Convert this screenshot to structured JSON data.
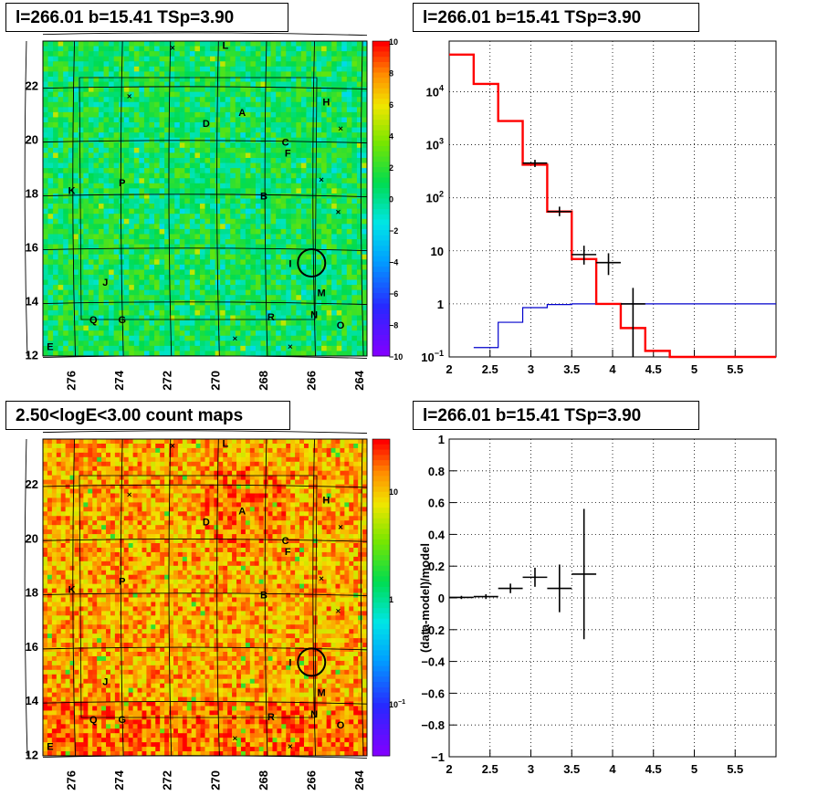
{
  "panels": {
    "tl_title": "l=266.01 b=15.41 TSp=3.90",
    "tr_title": "l=266.01 b=15.41 TSp=3.90",
    "bl_title": "2.50<logE<3.00 count maps",
    "br_title": "l=266.01 b=15.41 TSp=3.90"
  },
  "colors": {
    "data": "#000000",
    "model": "#ff0000",
    "ratio": "#0000cc"
  },
  "chart_data": [
    {
      "type": "heatmap",
      "title": "l=266.01 b=15.41 TSp=3.90",
      "x_ticks": [
        "276",
        "274",
        "272",
        "270",
        "268",
        "266",
        "264"
      ],
      "y_ticks": [
        "12",
        "14",
        "16",
        "18",
        "20",
        "22"
      ],
      "colorbar_ticks": [
        "10",
        "8",
        "6",
        "4",
        "2",
        "0",
        "−2",
        "−4",
        "−6",
        "−8",
        "−10"
      ],
      "colorbar_range": [
        -10,
        10
      ],
      "sources": [
        {
          "label": "L",
          "l": 269.6,
          "b": 23.5
        },
        {
          "label": "H",
          "l": 265.4,
          "b": 21.4
        },
        {
          "label": "A",
          "l": 268.9,
          "b": 21.0
        },
        {
          "label": "D",
          "l": 270.4,
          "b": 20.6
        },
        {
          "label": "C",
          "l": 267.1,
          "b": 19.9
        },
        {
          "label": "F",
          "l": 267.0,
          "b": 19.5
        },
        {
          "label": "K",
          "l": 276.0,
          "b": 18.1
        },
        {
          "label": "P",
          "l": 273.9,
          "b": 18.4
        },
        {
          "label": "B",
          "l": 268.0,
          "b": 17.9
        },
        {
          "label": "I",
          "l": 266.9,
          "b": 15.4
        },
        {
          "label": "J",
          "l": 274.6,
          "b": 14.7
        },
        {
          "label": "M",
          "l": 265.6,
          "b": 14.3
        },
        {
          "label": "Q",
          "l": 275.1,
          "b": 13.3
        },
        {
          "label": "G",
          "l": 273.9,
          "b": 13.3
        },
        {
          "label": "R",
          "l": 267.7,
          "b": 13.4
        },
        {
          "label": "N",
          "l": 265.9,
          "b": 13.5
        },
        {
          "label": "O",
          "l": 264.8,
          "b": 13.1
        },
        {
          "label": "E",
          "l": 276.9,
          "b": 12.3
        }
      ],
      "marked_position": {
        "l": 266.01,
        "b": 15.41
      }
    },
    {
      "type": "line",
      "title": "l=266.01 b=15.41 TSp=3.90",
      "y_scale": "log",
      "xlim": [
        2.0,
        6.0
      ],
      "ylim": [
        0.1,
        90000
      ],
      "x_ticks": [
        "2",
        "2.5",
        "3",
        "3.5",
        "4",
        "4.5",
        "5",
        "5.5"
      ],
      "y_ticks": [
        "10^1",
        "1",
        "10",
        "10^2",
        "10^3",
        "10^4"
      ],
      "series": [
        {
          "role": "model",
          "edges": [
            2.0,
            2.3,
            2.6,
            2.9,
            3.2,
            3.5,
            3.8,
            4.1,
            4.4,
            4.7,
            5.0,
            6.0
          ],
          "values": [
            50000,
            14000,
            2800,
            420,
            55,
            7,
            1.0,
            0.35,
            0.13,
            0.1,
            0.1
          ]
        },
        {
          "role": "ratio",
          "edges": [
            2.3,
            2.6,
            2.9,
            3.2,
            3.5,
            3.8,
            6.0
          ],
          "values": [
            0.15,
            0.45,
            0.85,
            0.97,
            1.0,
            1.0
          ]
        },
        {
          "role": "data",
          "points": [
            {
              "x": 3.05,
              "y": 450,
              "xerr": 0.15,
              "ylo": 380,
              "yhi": 520
            },
            {
              "x": 3.35,
              "y": 55,
              "xerr": 0.15,
              "ylo": 45,
              "yhi": 68
            },
            {
              "x": 3.65,
              "y": 8.5,
              "xerr": 0.15,
              "ylo": 5.5,
              "yhi": 12.5
            },
            {
              "x": 3.95,
              "y": 6,
              "xerr": 0.15,
              "ylo": 3.5,
              "yhi": 9
            },
            {
              "x": 4.25,
              "y": 1.0,
              "xerr": 0.15,
              "ylo": 0.1,
              "yhi": 2.0
            }
          ]
        }
      ]
    },
    {
      "type": "heatmap",
      "title": "2.50<logE<3.00 count maps",
      "x_ticks": [
        "276",
        "274",
        "272",
        "270",
        "268",
        "266",
        "264"
      ],
      "y_ticks": [
        "12",
        "14",
        "16",
        "18",
        "20",
        "22"
      ],
      "colorbar_ticks": [
        "10",
        "1",
        "10^-1"
      ],
      "colorbar_scale": "log"
    },
    {
      "type": "scatter",
      "title": "l=266.01 b=15.41 TSp=3.90",
      "ylabel": "(data-model)/model",
      "xlim": [
        2.0,
        6.0
      ],
      "ylim": [
        -1.0,
        1.0
      ],
      "x_ticks": [
        "2",
        "2.5",
        "3",
        "3.5",
        "4",
        "4.5",
        "5",
        "5.5"
      ],
      "y_ticks": [
        "1",
        "0.8",
        "0.6",
        "0.4",
        "0.2",
        "0",
        "−0.2",
        "−0.4",
        "−0.6",
        "−0.8",
        "−1"
      ],
      "points": [
        {
          "x": 2.15,
          "y": 0.003,
          "xerr": 0.15,
          "yerr": 0.01
        },
        {
          "x": 2.45,
          "y": 0.008,
          "xerr": 0.15,
          "yerr": 0.015
        },
        {
          "x": 2.75,
          "y": 0.06,
          "xerr": 0.15,
          "yerr": 0.03
        },
        {
          "x": 3.05,
          "y": 0.13,
          "xerr": 0.15,
          "yerr": 0.06
        },
        {
          "x": 3.35,
          "y": 0.06,
          "xerr": 0.15,
          "yerr": 0.15
        },
        {
          "x": 3.65,
          "y": 0.15,
          "xerr": 0.15,
          "yerr": 0.41
        }
      ]
    }
  ]
}
